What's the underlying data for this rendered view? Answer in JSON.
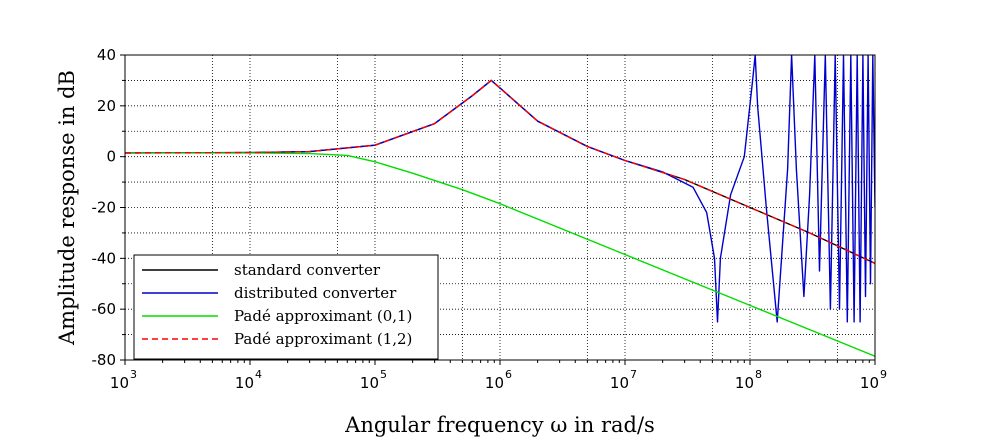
{
  "chart_data": {
    "type": "line",
    "xlabel": "Angular frequency ω in rad/s",
    "ylabel": "Amplitude response in dB",
    "xscale": "log",
    "xlim": [
      1000,
      1000000000
    ],
    "ylim": [
      -80,
      40
    ],
    "x_ticks": [
      {
        "base": "10",
        "exp": "3"
      },
      {
        "base": "10",
        "exp": "4"
      },
      {
        "base": "10",
        "exp": "5"
      },
      {
        "base": "10",
        "exp": "6"
      },
      {
        "base": "10",
        "exp": "7"
      },
      {
        "base": "10",
        "exp": "8"
      },
      {
        "base": "10",
        "exp": "9"
      }
    ],
    "y_ticks": [
      "40",
      "20",
      "0",
      "-20",
      "-40",
      "-60",
      "-80"
    ],
    "grid": true,
    "legend_position": "bottom-left",
    "series": [
      {
        "name": "standard converter",
        "color": "#000000",
        "dash": "solid",
        "x": [
          1000,
          10000,
          30000,
          100000,
          300000,
          600000,
          850000,
          1000000,
          2000000,
          5000000,
          10000000,
          30000000,
          100000000,
          300000000,
          1000000000
        ],
        "y": [
          1.5,
          1.6,
          2.0,
          4.5,
          13,
          24,
          30,
          27,
          14,
          4,
          -1.5,
          -9,
          -20,
          -30,
          -42
        ]
      },
      {
        "name": "distributed converter",
        "color": "#0000cc",
        "dash": "solid",
        "x": [
          1000,
          10000,
          30000,
          100000,
          300000,
          600000,
          850000,
          1000000,
          2000000,
          5000000,
          10000000,
          20000000,
          35000000,
          45000000,
          52000000,
          55000000,
          58000000,
          70000000,
          90000000,
          105000000,
          110000000,
          115000000,
          135000000,
          165000000,
          200000000,
          215000000,
          235000000,
          270000000,
          300000000,
          330000000,
          360000000,
          400000000,
          440000000,
          480000000,
          520000000,
          560000000,
          600000000,
          640000000,
          680000000,
          720000000,
          760000000,
          800000000,
          840000000,
          880000000,
          920000000,
          960000000,
          1000000000
        ],
        "y": [
          1.5,
          1.6,
          2.0,
          4.5,
          13,
          24,
          30,
          27,
          14,
          4,
          -1.5,
          -6,
          -12,
          -22,
          -40,
          -65,
          -40,
          -15,
          0,
          30,
          40,
          20,
          -20,
          -65,
          -5,
          40,
          -5,
          -55,
          -15,
          40,
          -45,
          40,
          -60,
          40,
          -60,
          40,
          -65,
          40,
          -65,
          40,
          -65,
          40,
          -55,
          40,
          -50,
          40,
          -20
        ]
      },
      {
        "name": "Padé approximant (0,1)",
        "color": "#00dd00",
        "dash": "solid",
        "x": [
          1000,
          10000,
          30000,
          60000,
          100000,
          200000,
          500000,
          1000000,
          10000000,
          100000000,
          1000000000
        ],
        "y": [
          1.5,
          1.5,
          1.2,
          0.5,
          -2,
          -6.5,
          -13,
          -18.5,
          -38.5,
          -58.5,
          -78.5
        ]
      },
      {
        "name": "Padé approximant (1,2)",
        "color": "#ff0000",
        "dash": "dashed",
        "x": [
          1000,
          10000,
          30000,
          100000,
          300000,
          600000,
          850000,
          1000000,
          2000000,
          5000000,
          10000000,
          30000000,
          100000000,
          300000000,
          1000000000
        ],
        "y": [
          1.5,
          1.6,
          2.0,
          4.5,
          13,
          24,
          30,
          27,
          14,
          4,
          -1.5,
          -9,
          -20,
          -30,
          -42
        ]
      }
    ]
  }
}
